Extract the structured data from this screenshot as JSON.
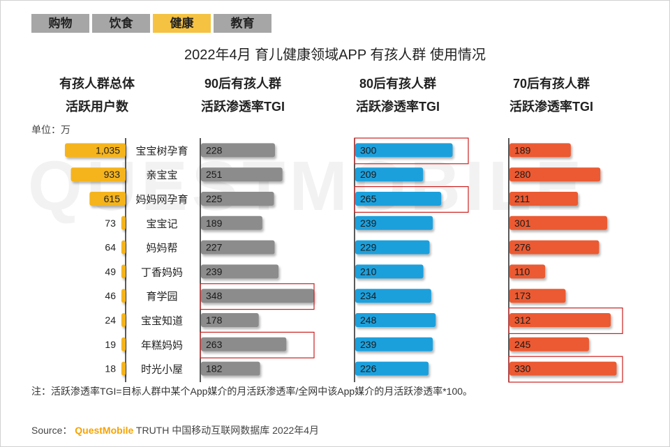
{
  "tabs": [
    {
      "label": "购物",
      "active": false
    },
    {
      "label": "饮食",
      "active": false
    },
    {
      "label": "健康",
      "active": true
    },
    {
      "label": "教育",
      "active": false
    }
  ],
  "title": "2022年4月 育儿健康领域APP 有孩人群 使用情况",
  "watermark": "QUESTMOBILE",
  "headers": {
    "total": [
      "有孩人群总体",
      "活跃用户数"
    ],
    "gen90": [
      "90后有孩人群",
      "活跃渗透率TGI"
    ],
    "gen80": [
      "80后有孩人群",
      "活跃渗透率TGI"
    ],
    "gen70": [
      "70后有孩人群",
      "活跃渗透率TGI"
    ]
  },
  "unit_label": "单位：万",
  "note": "注：活跃渗透率TGI=目标人群中某个App媒介的月活跃渗透率/全网中该App媒介的月活跃渗透率*100。",
  "source": {
    "prefix": "Source：",
    "brand": "QuestMobile",
    "rest": "TRUTH 中国移动互联网数据库 2022年4月"
  },
  "colors": {
    "yellow": "#f5b41e",
    "gray": "#8c8c8c",
    "blue": "#1ea0dc",
    "red": "#eb5a32",
    "highlight": "#cc1f1f"
  },
  "chart_data": {
    "type": "bar",
    "categories": [
      "宝宝树孕育",
      "亲宝宝",
      "妈妈网孕育",
      "宝宝记",
      "妈妈帮",
      "丁香妈妈",
      "育学园",
      "宝宝知道",
      "年糕妈妈",
      "时光小屋"
    ],
    "series": [
      {
        "name": "有孩人群总体 活跃用户数",
        "unit": "万",
        "labels": [
          "1,035",
          "933",
          "615",
          "73",
          "64",
          "49",
          "46",
          "24",
          "19",
          "18"
        ],
        "values": [
          1035,
          933,
          615,
          73,
          64,
          49,
          46,
          24,
          19,
          18
        ]
      },
      {
        "name": "90后有孩人群 活跃渗透率TGI",
        "values": [
          228,
          251,
          225,
          189,
          227,
          239,
          348,
          178,
          263,
          182
        ],
        "highlighted": [
          6,
          8
        ]
      },
      {
        "name": "80后有孩人群 活跃渗透率TGI",
        "values": [
          300,
          209,
          265,
          239,
          229,
          210,
          234,
          248,
          239,
          226
        ],
        "highlighted": [
          0,
          2
        ]
      },
      {
        "name": "70后有孩人群 活跃渗透率TGI",
        "values": [
          189,
          280,
          211,
          301,
          276,
          110,
          173,
          312,
          245,
          330
        ],
        "highlighted": [
          7,
          9
        ]
      }
    ]
  }
}
